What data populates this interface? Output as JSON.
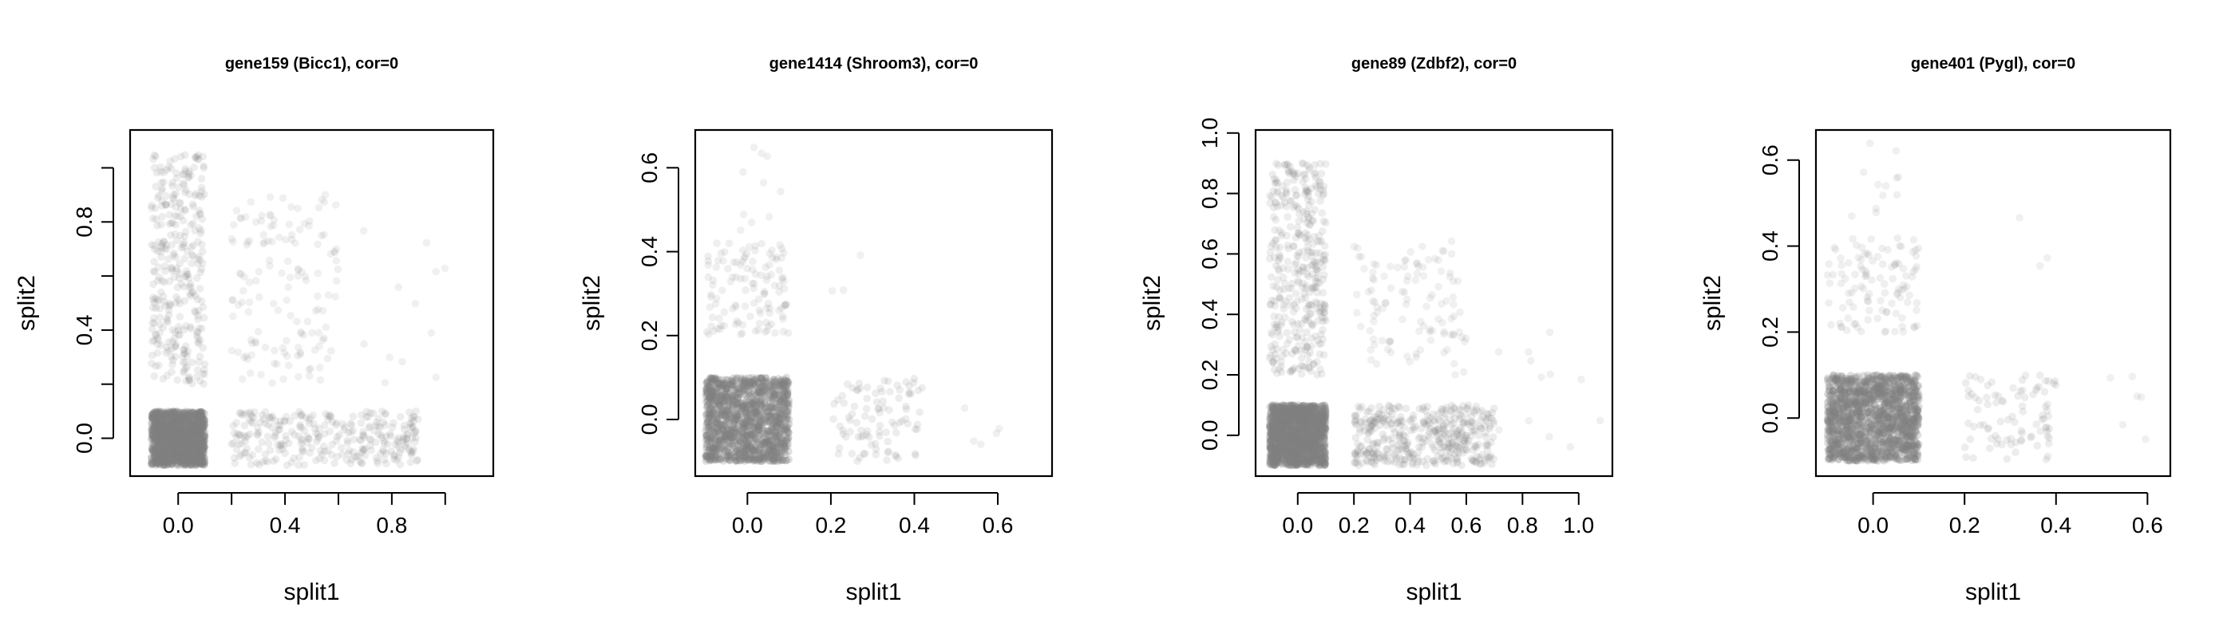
{
  "colors": {
    "point": "#808080",
    "axis": "#000000",
    "background": "#ffffff"
  },
  "chart_data": [
    {
      "type": "scatter",
      "title": "gene159 (Bicc1), cor=0",
      "xlabel": "split1",
      "ylabel": "split2",
      "xlim": [
        -0.18,
        1.18
      ],
      "ylim": [
        -0.14,
        1.14
      ],
      "xticks": [
        0.0,
        0.4,
        0.8
      ],
      "xticks_minor": [
        0.2,
        0.6,
        1.0
      ],
      "yticks": [
        0.0,
        0.4,
        0.8
      ],
      "yticks_minor": [
        0.2,
        0.6,
        1.0
      ],
      "grid": false,
      "point_color": "#808080",
      "seed": 11,
      "clusters": [
        {
          "n": 1400,
          "x": [
            -0.1,
            0.1
          ],
          "y": [
            -0.1,
            0.1
          ],
          "alpha": 0.25
        },
        {
          "n": 320,
          "x": [
            -0.1,
            0.1
          ],
          "y": [
            0.2,
            1.05
          ],
          "alpha": 0.14
        },
        {
          "n": 300,
          "x": [
            0.2,
            0.9
          ],
          "y": [
            -0.1,
            0.1
          ],
          "alpha": 0.14
        },
        {
          "n": 140,
          "x": [
            0.2,
            0.6
          ],
          "y": [
            0.2,
            0.9
          ],
          "alpha": 0.12
        },
        {
          "n": 12,
          "x": [
            0.6,
            1.1
          ],
          "y": [
            0.2,
            0.8
          ],
          "alpha": 0.12
        }
      ]
    },
    {
      "type": "scatter",
      "title": "gene1414 (Shroom3), cor=0",
      "xlabel": "split1",
      "ylabel": "split2",
      "xlim": [
        -0.125,
        0.73
      ],
      "ylim": [
        -0.135,
        0.69
      ],
      "xticks": [
        0.0,
        0.2,
        0.4,
        0.6
      ],
      "xticks_minor": [],
      "yticks": [
        0.0,
        0.2,
        0.4,
        0.6
      ],
      "yticks_minor": [],
      "grid": false,
      "point_color": "#808080",
      "seed": 23,
      "clusters": [
        {
          "n": 1300,
          "x": [
            -0.1,
            0.1
          ],
          "y": [
            -0.1,
            0.1
          ],
          "alpha": 0.25
        },
        {
          "n": 120,
          "x": [
            -0.1,
            0.1
          ],
          "y": [
            0.2,
            0.42
          ],
          "alpha": 0.13
        },
        {
          "n": 10,
          "x": [
            -0.02,
            0.08
          ],
          "y": [
            0.45,
            0.66
          ],
          "alpha": 0.12
        },
        {
          "n": 95,
          "x": [
            0.2,
            0.42
          ],
          "y": [
            -0.1,
            0.1
          ],
          "alpha": 0.14
        },
        {
          "n": 5,
          "x": [
            0.5,
            0.7
          ],
          "y": [
            -0.08,
            0.05
          ],
          "alpha": 0.12
        },
        {
          "n": 3,
          "x": [
            0.2,
            0.4
          ],
          "y": [
            0.28,
            0.42
          ],
          "alpha": 0.12
        }
      ]
    },
    {
      "type": "scatter",
      "title": "gene89 (Zdbf2), cor=0",
      "xlabel": "split1",
      "ylabel": "split2",
      "xlim": [
        -0.15,
        1.12
      ],
      "ylim": [
        -0.135,
        1.01
      ],
      "xticks": [
        0.0,
        0.2,
        0.4,
        0.6,
        0.8,
        1.0
      ],
      "xticks_minor": [],
      "yticks": [
        0.0,
        0.2,
        0.4,
        0.6,
        0.8,
        1.0
      ],
      "yticks_minor": [],
      "grid": false,
      "point_color": "#808080",
      "seed": 37,
      "clusters": [
        {
          "n": 1400,
          "x": [
            -0.1,
            0.1
          ],
          "y": [
            -0.1,
            0.1
          ],
          "alpha": 0.25
        },
        {
          "n": 380,
          "x": [
            -0.1,
            0.1
          ],
          "y": [
            0.2,
            0.9
          ],
          "alpha": 0.14
        },
        {
          "n": 420,
          "x": [
            0.2,
            0.7
          ],
          "y": [
            -0.1,
            0.1
          ],
          "alpha": 0.15
        },
        {
          "n": 110,
          "x": [
            0.2,
            0.6
          ],
          "y": [
            0.2,
            0.65
          ],
          "alpha": 0.12
        },
        {
          "n": 12,
          "x": [
            0.7,
            1.1
          ],
          "y": [
            -0.08,
            0.35
          ],
          "alpha": 0.12
        }
      ]
    },
    {
      "type": "scatter",
      "title": "gene401 (Pygl), cor=0",
      "xlabel": "split1",
      "ylabel": "split2",
      "xlim": [
        -0.125,
        0.65
      ],
      "ylim": [
        -0.135,
        0.67
      ],
      "xticks": [
        0.0,
        0.2,
        0.4,
        0.6
      ],
      "xticks_minor": [],
      "yticks": [
        0.0,
        0.2,
        0.4,
        0.6
      ],
      "yticks_minor": [],
      "grid": false,
      "point_color": "#808080",
      "seed": 53,
      "clusters": [
        {
          "n": 1400,
          "x": [
            -0.1,
            0.1
          ],
          "y": [
            -0.1,
            0.1
          ],
          "alpha": 0.25
        },
        {
          "n": 110,
          "x": [
            -0.1,
            0.1
          ],
          "y": [
            0.2,
            0.42
          ],
          "alpha": 0.13
        },
        {
          "n": 12,
          "x": [
            -0.06,
            0.06
          ],
          "y": [
            0.45,
            0.64
          ],
          "alpha": 0.12
        },
        {
          "n": 90,
          "x": [
            0.2,
            0.4
          ],
          "y": [
            -0.1,
            0.1
          ],
          "alpha": 0.14
        },
        {
          "n": 6,
          "x": [
            0.5,
            0.6
          ],
          "y": [
            -0.1,
            0.1
          ],
          "alpha": 0.12
        },
        {
          "n": 3,
          "x": [
            0.25,
            0.4
          ],
          "y": [
            0.3,
            0.47
          ],
          "alpha": 0.12
        }
      ]
    }
  ]
}
